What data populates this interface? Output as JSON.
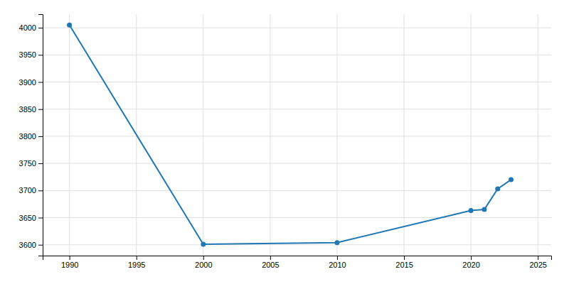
{
  "chart_data": {
    "type": "line",
    "x": [
      1990,
      2000,
      2010,
      2020,
      2021,
      2022,
      2023
    ],
    "values": [
      4005,
      3601,
      3604,
      3663,
      3665,
      3703,
      3720
    ],
    "xlim": [
      1988,
      2026
    ],
    "ylim": [
      3580,
      4025
    ],
    "xticks": [
      1990,
      1995,
      2000,
      2005,
      2010,
      2015,
      2020,
      2025
    ],
    "yticks": [
      3600,
      3650,
      3700,
      3750,
      3800,
      3850,
      3900,
      3950,
      4000
    ],
    "grid": true,
    "marker": "circle"
  }
}
